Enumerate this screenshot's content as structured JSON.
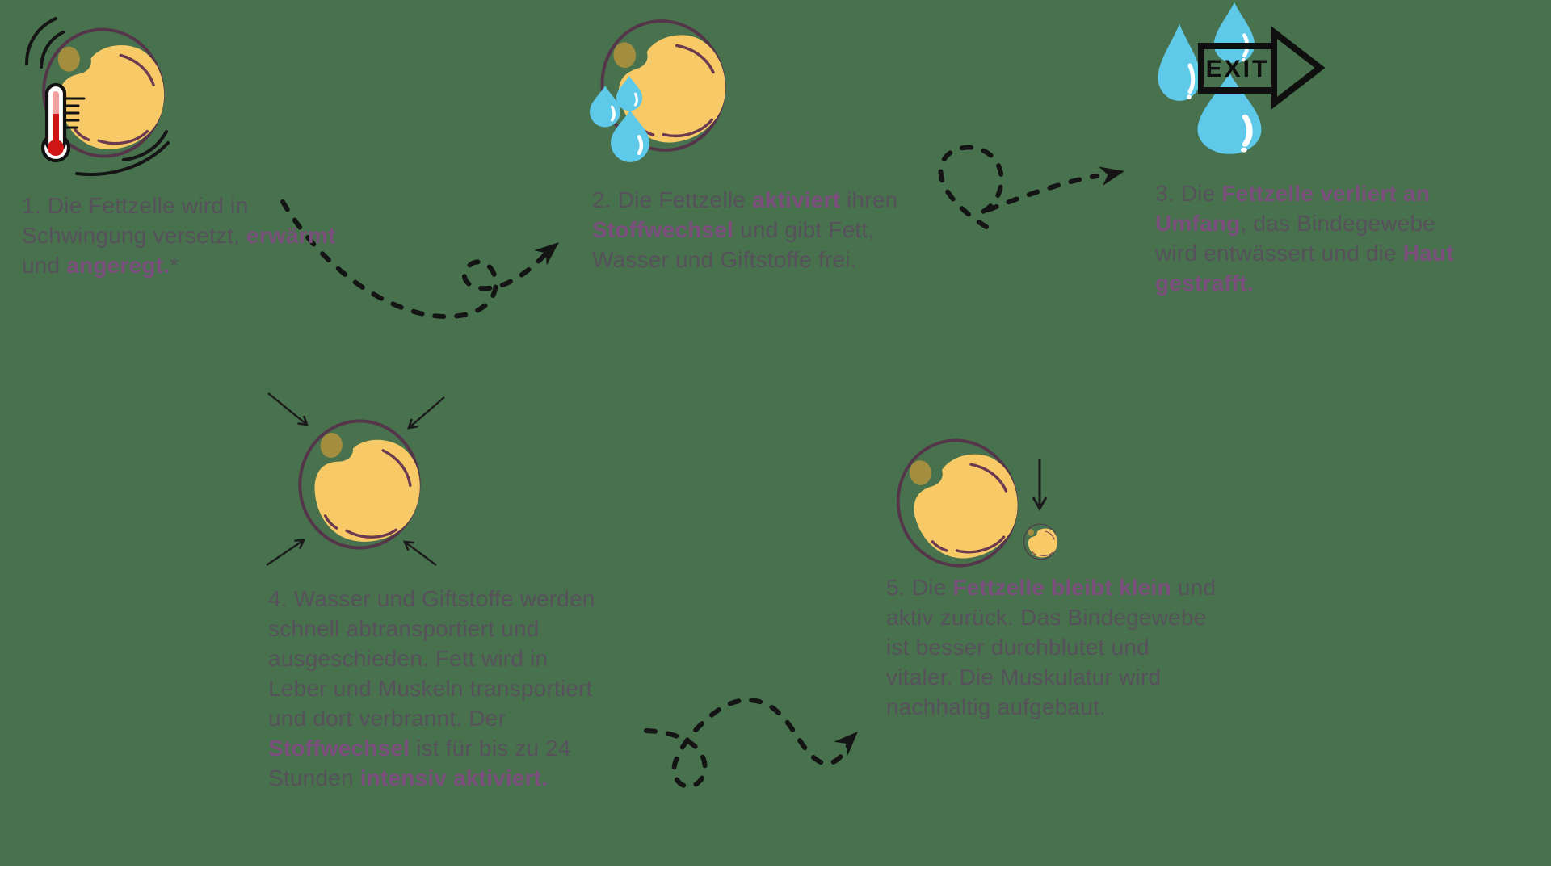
{
  "page": {
    "background_color": "#48714D",
    "bottom_bar_color": "#FFFFFF"
  },
  "colors": {
    "bg": "#48714D",
    "bottom_bar": "#FFFFFF",
    "text": "#57515B",
    "highlight": "#7C4E7D",
    "cell_outline": "#553549",
    "cell_fill": "#F7C967",
    "nucleus": "#A38D3E",
    "accent": "#6B3A50",
    "drop": "#5FC9E9",
    "arrow": "#141414",
    "thermometer_red": "#CE1616",
    "thermometer_light": "#F2A2A0"
  },
  "exit_sign": {
    "label": "EXIT"
  },
  "icons": [
    "vibrating-fat-cell-with-thermometer-icon",
    "fat-cell-releasing-water-drops-icon",
    "water-drops-exit-arrow-icon",
    "fat-cell-shrinking-arrows-icon",
    "large-and-small-fat-cell-icon"
  ],
  "connectors": [
    "dashed-arrow-step1-to-step2",
    "dashed-arrow-step2-to-step3",
    "dashed-arrow-step4-to-step5"
  ],
  "steps": [
    {
      "name": "step-1",
      "icon": "vibrating-fat-cell-with-thermometer-icon",
      "segments": [
        {
          "text": "1. Die Fettzelle wird in\nSchwingung versetzt, ",
          "highlight": false
        },
        {
          "text": "erwärmt",
          "highlight": true
        },
        {
          "text": "\nund ",
          "highlight": false
        },
        {
          "text": "angeregt.",
          "highlight": true
        },
        {
          "text": "*",
          "highlight": false
        }
      ]
    },
    {
      "name": "step-2",
      "icon": "fat-cell-releasing-water-drops-icon",
      "segments": [
        {
          "text": "2. Die Fettzelle ",
          "highlight": false
        },
        {
          "text": "aktiviert",
          "highlight": true
        },
        {
          "text": " ihren\n",
          "highlight": false
        },
        {
          "text": "Stoffwechsel",
          "highlight": true
        },
        {
          "text": " und gibt Fett,\nWasser und Giftstoffe frei.",
          "highlight": false
        }
      ]
    },
    {
      "name": "step-3",
      "icon": "water-drops-exit-arrow-icon",
      "segments": [
        {
          "text": "3. Die ",
          "highlight": false
        },
        {
          "text": "Fettzelle verliert an\nUmfang",
          "highlight": true
        },
        {
          "text": ", das Bindegewebe\nwird entwässert und die ",
          "highlight": false
        },
        {
          "text": "Haut\ngestrafft.",
          "highlight": true
        }
      ]
    },
    {
      "name": "step-4",
      "icon": "fat-cell-shrinking-arrows-icon",
      "segments": [
        {
          "text": "4. Wasser und Giftstoffe werden\nschnell abtransportiert und\nausgeschieden. Fett wird in\nLeber und Muskeln transportiert\nund dort verbrannt. Der\n",
          "highlight": false
        },
        {
          "text": "Stoffwechsel",
          "highlight": true
        },
        {
          "text": " ist für bis zu 24\nStunden ",
          "highlight": false
        },
        {
          "text": "intensiv aktiviert.",
          "highlight": true
        }
      ]
    },
    {
      "name": "step-5",
      "icon": "large-and-small-fat-cell-icon",
      "segments": [
        {
          "text": "5. Die ",
          "highlight": false
        },
        {
          "text": "Fettzelle bleibt klein",
          "highlight": true
        },
        {
          "text": " und\naktiv zurück. Das Bindegewebe\nist besser durchblutet und\nvitaler. Die Muskulatur wird\nnachhaltig aufgebaut.",
          "highlight": false
        }
      ]
    }
  ]
}
